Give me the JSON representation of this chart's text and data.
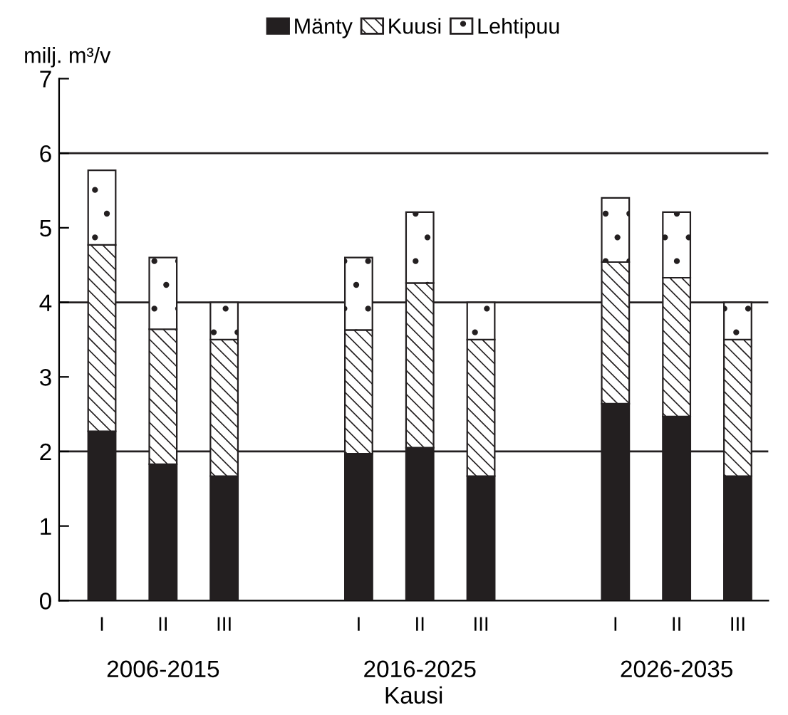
{
  "chart_data": {
    "type": "bar",
    "stacked": true,
    "ylabel": "milj. m³/v",
    "xlabel": "Kausi",
    "categories": [
      "I",
      "II",
      "III",
      "I",
      "II",
      "III",
      "I",
      "II",
      "III"
    ],
    "series": [
      {
        "name": "Mänty",
        "color": "#231f20",
        "values": [
          2.27,
          1.83,
          1.67,
          1.97,
          2.05,
          1.67,
          2.64,
          2.47,
          1.67
        ]
      },
      {
        "name": "Kuusi",
        "color": "#231f20",
        "values": [
          2.5,
          1.81,
          1.83,
          1.66,
          2.21,
          1.83,
          1.9,
          1.86,
          1.83
        ]
      },
      {
        "name": "Lehtipuu",
        "color": "#231f20",
        "values": [
          1.0,
          0.96,
          0.5,
          0.97,
          0.95,
          0.5,
          0.86,
          0.88,
          0.5
        ]
      }
    ],
    "annotations": [
      "2006-2015",
      "2016-2025",
      "2026-2035"
    ],
    "ylim": [
      0,
      7
    ],
    "yticks": [
      0,
      1,
      2,
      3,
      4,
      5,
      6,
      7
    ],
    "ref_lines": [
      {
        "axis": "y",
        "value": 2,
        "color": "#231f20"
      },
      {
        "axis": "y",
        "value": 4,
        "color": "#231f20"
      },
      {
        "axis": "y",
        "value": 6,
        "color": "#231f20"
      }
    ],
    "grid": false,
    "legend": "top"
  }
}
